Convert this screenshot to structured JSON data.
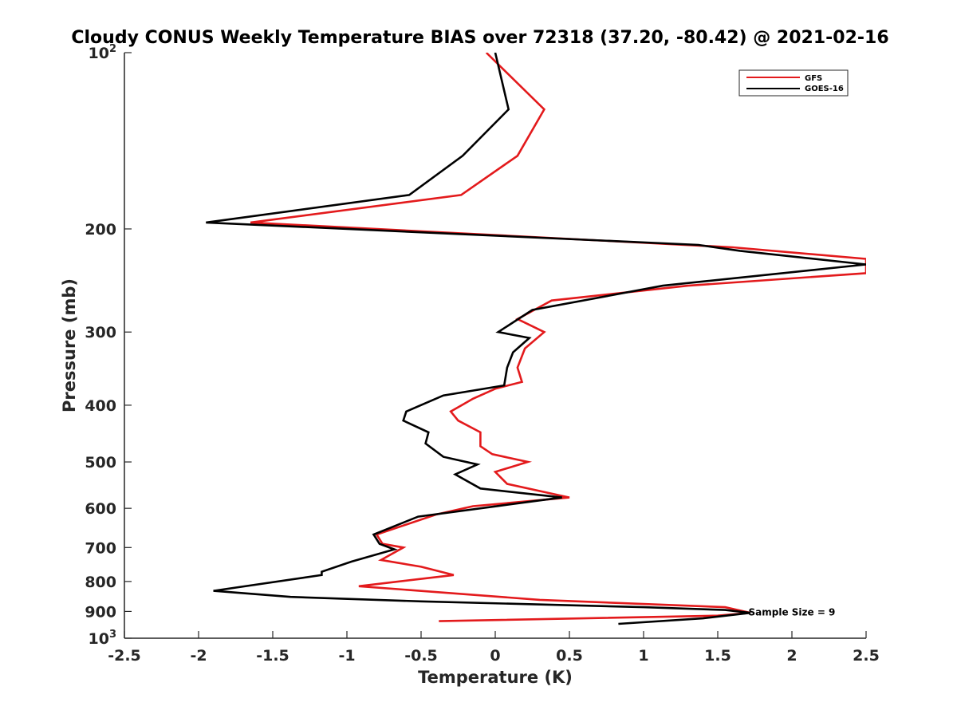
{
  "chart_data": {
    "type": "line",
    "title": "Cloudy CONUS Weekly Temperature BIAS over 72318 (37.20, -80.42) @ 2021-02-16",
    "xlabel": "Temperature (K)",
    "ylabel": "Pressure (mb)",
    "xlim": [
      -2.5,
      2.5
    ],
    "ylim": [
      100,
      1000
    ],
    "yscale": "log",
    "yreverse": true,
    "x_ticks": [
      -2.5,
      -2,
      -1.5,
      -1,
      -0.5,
      0,
      0.5,
      1,
      1.5,
      2,
      2.5
    ],
    "x_tick_labels": [
      "-2.5",
      "-2",
      "-1.5",
      "-1",
      "-0.5",
      "0",
      "0.5",
      "1",
      "1.5",
      "2",
      "2.5"
    ],
    "y_ticks": [
      {
        "value": 100,
        "base": "10",
        "exp": "2"
      },
      {
        "value": 200,
        "label": "200"
      },
      {
        "value": 300,
        "label": "300"
      },
      {
        "value": 400,
        "label": "400"
      },
      {
        "value": 500,
        "label": "500"
      },
      {
        "value": 600,
        "label": "600"
      },
      {
        "value": 700,
        "label": "700"
      },
      {
        "value": 800,
        "label": "800"
      },
      {
        "value": 900,
        "label": "900"
      },
      {
        "value": 1000,
        "base": "10",
        "exp": "3"
      }
    ],
    "legend": {
      "position": "top-right",
      "entries": [
        "GFS",
        "GOES-16"
      ]
    },
    "annotation": {
      "text": "Sample Size = 9",
      "x": 1.75,
      "y": 900
    },
    "series": [
      {
        "name": "GFS",
        "color": "#e31a1c",
        "points": [
          [
            -0.06,
            100
          ],
          [
            0.33,
            125
          ],
          [
            0.15,
            150
          ],
          [
            -0.23,
            175
          ],
          [
            -1.65,
            195
          ],
          [
            1.6,
            215
          ],
          [
            2.5,
            225
          ],
          [
            2.5,
            238
          ],
          [
            1.3,
            250
          ],
          [
            0.38,
            265
          ],
          [
            0.15,
            285
          ],
          [
            0.33,
            300
          ],
          [
            0.2,
            320
          ],
          [
            0.15,
            345
          ],
          [
            0.18,
            365
          ],
          [
            0.0,
            375
          ],
          [
            -0.15,
            390
          ],
          [
            -0.3,
            410
          ],
          [
            -0.25,
            425
          ],
          [
            -0.1,
            445
          ],
          [
            -0.1,
            470
          ],
          [
            -0.02,
            485
          ],
          [
            0.22,
            500
          ],
          [
            0.0,
            520
          ],
          [
            0.08,
            545
          ],
          [
            0.5,
            575
          ],
          [
            -0.15,
            595
          ],
          [
            -0.4,
            615
          ],
          [
            -0.8,
            665
          ],
          [
            -0.76,
            690
          ],
          [
            -0.62,
            700
          ],
          [
            -0.77,
            735
          ],
          [
            -0.5,
            755
          ],
          [
            -0.28,
            780
          ],
          [
            -0.92,
            815
          ],
          [
            0.3,
            860
          ],
          [
            1.55,
            885
          ],
          [
            1.72,
            905
          ],
          [
            1.5,
            915
          ],
          [
            -0.38,
            935
          ]
        ]
      },
      {
        "name": "GOES-16",
        "color": "#000000",
        "points": [
          [
            0.0,
            100
          ],
          [
            0.09,
            125
          ],
          [
            -0.22,
            150
          ],
          [
            -0.58,
            175
          ],
          [
            -1.95,
            195
          ],
          [
            1.37,
            213
          ],
          [
            1.65,
            218
          ],
          [
            2.5,
            230
          ],
          [
            1.13,
            250
          ],
          [
            0.25,
            275
          ],
          [
            0.02,
            300
          ],
          [
            0.23,
            307
          ],
          [
            0.12,
            325
          ],
          [
            0.08,
            345
          ],
          [
            0.06,
            370
          ],
          [
            -0.35,
            385
          ],
          [
            -0.6,
            410
          ],
          [
            -0.62,
            425
          ],
          [
            -0.45,
            445
          ],
          [
            -0.47,
            465
          ],
          [
            -0.35,
            490
          ],
          [
            -0.12,
            505
          ],
          [
            -0.27,
            525
          ],
          [
            -0.1,
            555
          ],
          [
            0.45,
            575
          ],
          [
            -0.52,
            620
          ],
          [
            -0.82,
            665
          ],
          [
            -0.78,
            690
          ],
          [
            -0.68,
            705
          ],
          [
            -0.97,
            740
          ],
          [
            -1.17,
            770
          ],
          [
            -1.17,
            780
          ],
          [
            -1.9,
            830
          ],
          [
            -1.38,
            850
          ],
          [
            -0.5,
            865
          ],
          [
            1.0,
            885
          ],
          [
            1.55,
            895
          ],
          [
            1.72,
            905
          ],
          [
            1.4,
            925
          ],
          [
            0.83,
            945
          ]
        ]
      }
    ]
  }
}
